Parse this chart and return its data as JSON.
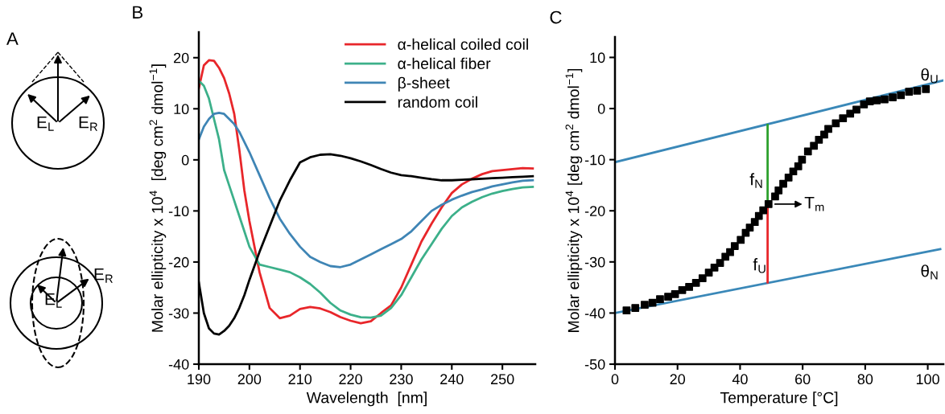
{
  "chart_data": [
    {
      "type": "other",
      "title": "A",
      "annotations": [
        "E$_{L}$",
        "E$_{R}$",
        "E$_{L}$",
        "E$_{R}$"
      ]
    },
    {
      "type": "line",
      "title": "B",
      "xlabel": "Wavelength  [nm]",
      "ylabel": "Molar ellipticity x 10$^{4}$  [deg cm$^{2}$ dmol$^{−1}$]",
      "xlim": [
        190,
        256.5
      ],
      "ylim": [
        -40,
        25
      ],
      "xticks": [
        190,
        200,
        210,
        220,
        230,
        240,
        250
      ],
      "yticks": [
        -40,
        -30,
        -20,
        -10,
        0,
        10,
        20
      ],
      "grid": false,
      "legend": "top right",
      "marker": "none",
      "line_style": "solid",
      "x": [
        190,
        191,
        192,
        193,
        194,
        195,
        196,
        197,
        198,
        199,
        200,
        202,
        204,
        206,
        208,
        210,
        212,
        214,
        216,
        218,
        220,
        222,
        224,
        226,
        228,
        230,
        232,
        234,
        236,
        238,
        240,
        242,
        244,
        246,
        248,
        250,
        252,
        254,
        256
      ],
      "series": [
        {
          "name": "α-helical coiled coil",
          "color": "#e8262a",
          "values": [
            14,
            18.5,
            19.5,
            19.4,
            18,
            16,
            13,
            9,
            2,
            -6,
            -12,
            -22,
            -29,
            -31,
            -30.5,
            -29.2,
            -28.8,
            -29.1,
            -29.8,
            -30.8,
            -31.5,
            -32,
            -31.6,
            -30,
            -28.5,
            -25,
            -20.5,
            -16,
            -12.5,
            -9.3,
            -6.5,
            -4.8,
            -3.7,
            -2.8,
            -2.2,
            -2,
            -1.8,
            -1.6,
            -1.7
          ]
        },
        {
          "name": "α-helical fiber",
          "color": "#3cb08a",
          "values": [
            15.5,
            14.5,
            12,
            8,
            4,
            -2,
            -5,
            -8,
            -11,
            -14,
            -17,
            -20.5,
            -21,
            -21.5,
            -22,
            -23,
            -24.3,
            -26,
            -28,
            -29.5,
            -30.3,
            -30.8,
            -30.9,
            -30.5,
            -29,
            -26.5,
            -23,
            -19.5,
            -16.5,
            -13.5,
            -11,
            -9.3,
            -8.2,
            -7.3,
            -6.6,
            -6.1,
            -5.7,
            -5.4,
            -5.3
          ]
        },
        {
          "name": "β-sheet",
          "color": "#3f85b5",
          "values": [
            4,
            6.5,
            8,
            9,
            9.2,
            9,
            8,
            7,
            5.5,
            3.5,
            1.5,
            -3,
            -7.5,
            -11.5,
            -14.5,
            -17,
            -19,
            -20,
            -20.8,
            -21,
            -20.5,
            -19.5,
            -18.5,
            -17.5,
            -16.5,
            -15.5,
            -14,
            -12,
            -10,
            -8.8,
            -7.8,
            -7,
            -6.3,
            -5.8,
            -5.2,
            -4.8,
            -4.4,
            -4.1,
            -4
          ]
        },
        {
          "name": "random coil",
          "color": "#000000",
          "values": [
            -24,
            -30,
            -33,
            -34,
            -34.2,
            -33.5,
            -32.5,
            -31,
            -29,
            -26.5,
            -23.5,
            -18,
            -13,
            -8,
            -4,
            -0.5,
            0.5,
            1,
            1.1,
            0.8,
            0.3,
            -0.3,
            -1,
            -1.8,
            -2.5,
            -3,
            -3.2,
            -3.5,
            -3.8,
            -4,
            -4,
            -3.9,
            -3.8,
            -3.7,
            -3.6,
            -3.5,
            -3.4,
            -3.3,
            -3.2
          ]
        }
      ]
    },
    {
      "type": "scatter",
      "title": "C",
      "xlabel": "Temperature [°C]",
      "ylabel": "Molar ellipticity x 10$^{4}$ [deg cm$^{2}$ dmol$^{−1}$]",
      "xlim": [
        0,
        105
      ],
      "ylim": [
        -50,
        14
      ],
      "xticks": [
        0,
        20,
        40,
        60,
        80,
        100
      ],
      "yticks": [
        -50,
        -40,
        -30,
        -20,
        -10,
        0,
        10
      ],
      "grid": false,
      "legend": false,
      "series": [
        {
          "type": "scatter",
          "marker": "square",
          "color": "#000000",
          "x": [
            3.7,
            6.5,
            9.5,
            12,
            14.4,
            17,
            19.2,
            21.5,
            23.7,
            25.9,
            28,
            30,
            31.8,
            33.6,
            35.3,
            36.8,
            38.3,
            40.2,
            41.8,
            43.1,
            44.7,
            46,
            47.4,
            49.1,
            51.2,
            52.3,
            53.8,
            55.5,
            57,
            58.6,
            59.8,
            61.7,
            63.6,
            65.2,
            66.9,
            68.2,
            70.6,
            72.9,
            75.2,
            77.2,
            79.6,
            81.5,
            83.7,
            86.2,
            88.8,
            91.4,
            94,
            96.6,
            99.4
          ],
          "values": [
            -39.5,
            -39,
            -38.4,
            -38,
            -37.3,
            -36.8,
            -36.3,
            -35.5,
            -34.9,
            -34.1,
            -33.2,
            -32.1,
            -31.1,
            -30.2,
            -29,
            -28.1,
            -26.9,
            -25.7,
            -24.3,
            -23.3,
            -22.2,
            -21,
            -19.9,
            -18.7,
            -17.2,
            -16,
            -14.7,
            -13.5,
            -12.3,
            -11.3,
            -10,
            -8.4,
            -7.3,
            -6.1,
            -5.1,
            -4,
            -2.9,
            -1.9,
            -1,
            -0.2,
            0.8,
            1.4,
            1.6,
            1.8,
            2.2,
            2.6,
            3.3,
            3.5,
            3.8
          ]
        },
        {
          "type": "line",
          "color": "#3a88b8",
          "x": [
            0,
            105
          ],
          "values": [
            -10.5,
            5.5
          ]
        },
        {
          "type": "line",
          "color": "#3a88b8",
          "x": [
            0,
            104
          ],
          "values": [
            -40,
            -27.5
          ]
        },
        {
          "type": "line",
          "color": "#2ca02c",
          "x": [
            48.8,
            48.8
          ],
          "values": [
            -3.2,
            -17.8
          ]
        },
        {
          "type": "line",
          "color": "#e8262a",
          "x": [
            48.8,
            48.8
          ],
          "values": [
            -19.5,
            -34
          ]
        }
      ],
      "annotations": [
        "θ$_{U}$",
        "θ$_{N}$",
        "f$_{N}$",
        "f$_{U}$",
        {
          "text": "T$_{m}$",
          "x": 49.1,
          "y": -18.7
        }
      ]
    }
  ]
}
